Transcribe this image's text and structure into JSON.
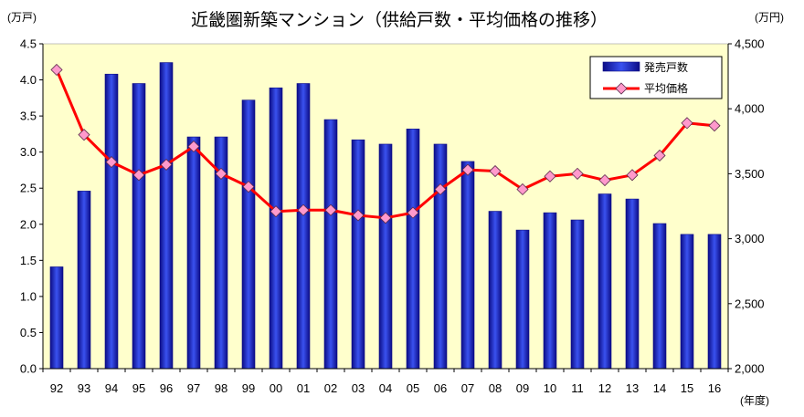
{
  "chart_data": {
    "type": "bar",
    "title": "近畿圏新築マンション（供給戸数・平均価格の推移）",
    "xlabel": "(年度)",
    "ylabel": "(万戸)",
    "y2label": "(万円)",
    "categories": [
      "92",
      "93",
      "94",
      "95",
      "96",
      "97",
      "98",
      "99",
      "00",
      "01",
      "02",
      "03",
      "04",
      "05",
      "06",
      "07",
      "08",
      "09",
      "10",
      "11",
      "12",
      "13",
      "14",
      "15",
      "16"
    ],
    "series": [
      {
        "name": "発売戸数",
        "type": "bar",
        "axis": "left",
        "values": [
          1.41,
          2.46,
          4.08,
          3.95,
          4.24,
          3.21,
          3.21,
          3.72,
          3.89,
          3.95,
          3.45,
          3.17,
          3.11,
          3.32,
          3.11,
          2.87,
          2.18,
          1.92,
          2.16,
          2.06,
          2.42,
          2.35,
          2.01,
          1.86,
          1.86
        ]
      },
      {
        "name": "平均価格",
        "type": "line",
        "axis": "right",
        "values": [
          4300,
          3800,
          3590,
          3490,
          3570,
          3710,
          3500,
          3400,
          3210,
          3220,
          3220,
          3180,
          3160,
          3200,
          3380,
          3530,
          3520,
          3380,
          3480,
          3500,
          3450,
          3490,
          3640,
          3890,
          3870
        ]
      }
    ],
    "ylim": [
      0,
      4.5
    ],
    "y2lim": [
      2000,
      4500
    ],
    "yticks": [
      "0.0",
      "0.5",
      "1.0",
      "1.5",
      "2.0",
      "2.5",
      "3.0",
      "3.5",
      "4.0",
      "4.5"
    ],
    "y2ticks": [
      "2,000",
      "2,500",
      "3,000",
      "3,500",
      "4,000",
      "4,500"
    ],
    "grid": false,
    "legend_position": "top-right"
  },
  "colors": {
    "bar": "#3a52f0",
    "bar_edge": "#0c0c86",
    "line": "#ff0000",
    "marker": "#ff99cc",
    "marker_edge": "#5a2a4a",
    "plot_background": "#ffffcc"
  }
}
